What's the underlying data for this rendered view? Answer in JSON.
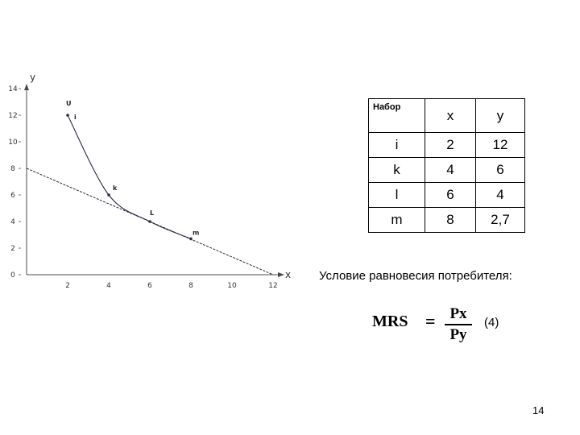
{
  "chart_data": {
    "type": "line",
    "xlabel": "x",
    "ylabel": "y",
    "xlim": [
      0,
      12
    ],
    "ylim": [
      0,
      14
    ],
    "x_ticks": [
      2,
      4,
      6,
      8,
      10,
      12
    ],
    "y_ticks": [
      0,
      2,
      4,
      6,
      8,
      10,
      12,
      14
    ],
    "grid": false,
    "series": [
      {
        "name": "U",
        "style": "curve",
        "x": [
          2,
          4,
          6,
          8
        ],
        "y": [
          12,
          6,
          4,
          2.7
        ]
      },
      {
        "style": "line",
        "x": [
          0,
          12
        ],
        "y": [
          8,
          0
        ]
      }
    ],
    "points": [
      {
        "label": "i",
        "x": 2,
        "y": 12
      },
      {
        "label": "k",
        "x": 4,
        "y": 6
      },
      {
        "label": "L",
        "x": 6,
        "y": 4
      },
      {
        "label": "m",
        "x": 8,
        "y": 2.7
      }
    ],
    "colors": {
      "axis": "#4a4a4a",
      "curve": "#2a2a40"
    }
  },
  "table": {
    "header": [
      "Набор",
      "x",
      "y"
    ],
    "rows": [
      [
        "i",
        "2",
        "12"
      ],
      [
        "k",
        "4",
        "6"
      ],
      [
        "l",
        "6",
        "4"
      ],
      [
        "m",
        "8",
        "2,7"
      ]
    ]
  },
  "condition_text": "Условие равновесия потребителя:",
  "formula": {
    "lhs": "MRS",
    "eq": "=",
    "numerator": "Px",
    "denominator": "Py"
  },
  "equation_number": "(4)",
  "page_number": "14"
}
